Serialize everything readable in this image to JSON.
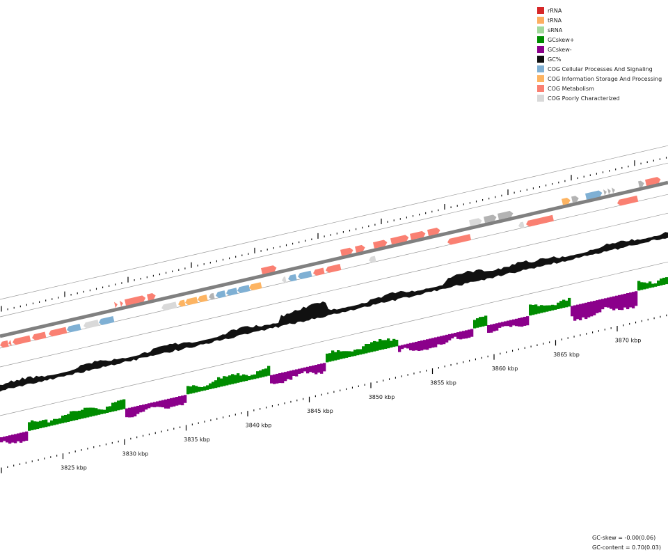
{
  "legend": [
    {
      "label": "rRNA",
      "color": "#d62728"
    },
    {
      "label": "tRNA",
      "color": "#fdae61"
    },
    {
      "label": "sRNA",
      "color": "#a1d99b"
    },
    {
      "label": "GCskew+",
      "color": "#008c00"
    },
    {
      "label": "GCskew-",
      "color": "#8b008b"
    },
    {
      "label": "GC%",
      "color": "#111111"
    },
    {
      "label": "COG Cellular Processes And Signaling",
      "color": "#7fb0d4"
    },
    {
      "label": "COG Information Storage And Processing",
      "color": "#fdb462"
    },
    {
      "label": "COG Metabolism",
      "color": "#fa8072"
    },
    {
      "label": "COG Poorly Characterized",
      "color": "#d9d9d9"
    }
  ],
  "axis": {
    "unit": "kbp",
    "labels": [
      {
        "value": 3825,
        "text": "3825 kbp"
      },
      {
        "value": 3830,
        "text": "3830 kbp"
      },
      {
        "value": 3835,
        "text": "3835 kbp"
      },
      {
        "value": 3840,
        "text": "3840 kbp"
      },
      {
        "value": 3845,
        "text": "3845 kbp"
      },
      {
        "value": 3850,
        "text": "3850 kbp"
      },
      {
        "value": 3855,
        "text": "3855 kbp"
      },
      {
        "value": 3860,
        "text": "3860 kbp"
      },
      {
        "value": 3865,
        "text": "3865 kbp"
      },
      {
        "value": 3870,
        "text": "3870 kbp"
      }
    ]
  },
  "stats": {
    "gc_skew": "GC-skew = -0.00(0.06)",
    "gc_content": "GC-content = 0.70(0.03)"
  },
  "colors": {
    "cog_cellular": "#7fb0d4",
    "cog_info": "#fdb462",
    "cog_metabolism": "#fa8072",
    "cog_poor": "#d9d9d9",
    "unassigned": "#b3b3b3",
    "gc_percent": "#111111",
    "gc_skew_pos": "#008c00",
    "gc_skew_neg": "#8b008b",
    "backbone": "#808080"
  }
}
